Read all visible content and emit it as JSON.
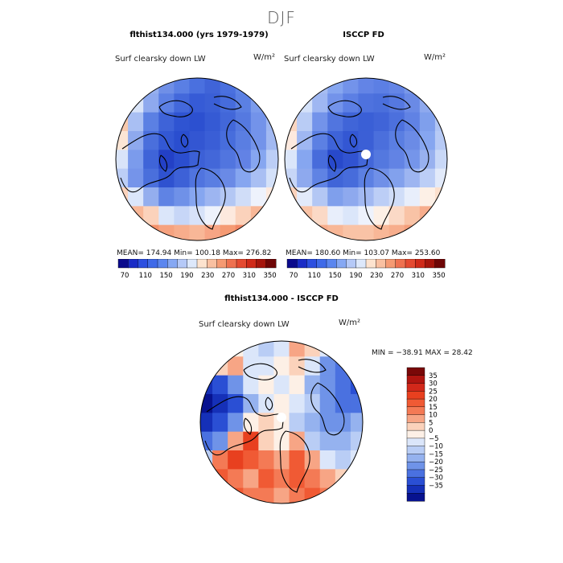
{
  "page": {
    "season": "DJF"
  },
  "panels": [
    {
      "title": "flthist134.000 (yrs 1979-1979)",
      "variable": "Surf clearsky down LW",
      "units": "W/m²",
      "stats": "MEAN= 174.94   Min= 100.18   Max= 276.82"
    },
    {
      "title": "ISCCP FD",
      "variable": "Surf clearsky down LW",
      "units": "W/m²",
      "stats": "MEAN= 180.60   Min= 103.07   Max= 253.60"
    },
    {
      "title": "flthist134.000 - ISCCP FD",
      "variable": "Surf clearsky down LW",
      "units": "W/m²",
      "stats": "MIN = −38.91  MAX =  28.42"
    }
  ],
  "colorbar_top": {
    "labels": [
      "70",
      "110",
      "150",
      "190",
      "230",
      "270",
      "310",
      "350"
    ],
    "colors": [
      "#0a0a8c",
      "#1a2cc6",
      "#2c4fe0",
      "#3f6ae8",
      "#5b86ef",
      "#86a8f3",
      "#b5c9f7",
      "#dde8fb",
      "#fde3cf",
      "#f9c0a1",
      "#f59a73",
      "#ee7150",
      "#e44a31",
      "#cf2a19",
      "#a5150c",
      "#6e0606"
    ]
  },
  "colorbar_diff": {
    "labels": [
      "35",
      "30",
      "25",
      "20",
      "15",
      "10",
      "5",
      "0",
      "−5",
      "−10",
      "−15",
      "−20",
      "−25",
      "−30",
      "−35"
    ],
    "colors": [
      "#7a0808",
      "#b01510",
      "#d2281a",
      "#e8401f",
      "#f05a34",
      "#f47a55",
      "#f7a585",
      "#fbd2bb",
      "#fdf0e6",
      "#dbe6fa",
      "#b9cdf5",
      "#95b2ef",
      "#6f93e8",
      "#4a71e0",
      "#2a4fd4",
      "#1530b8",
      "#07128f"
    ]
  },
  "maps": {
    "panel1": {
      "cells": [
        [
          "#d9e4f9",
          "#b9ccf5",
          "#96b0ef",
          "#6f8fe7",
          "#5a7fe4",
          "#4a70df",
          "#4064d8",
          "#4a70df",
          "#5d84e6",
          "#86a6f0",
          "#b7caf5"
        ],
        [
          "#f4b391",
          "#d9e4f9",
          "#8ea9ee",
          "#5c80e4",
          "#4368db",
          "#365bd6",
          "#3a5fd6",
          "#466cdc",
          "#5b80e3",
          "#7c9cec",
          "#a9bff3"
        ],
        [
          "#f7c9ad",
          "#a9bff3",
          "#5b80e3",
          "#3e63d8",
          "#2f54d2",
          "#2c50d0",
          "#355ad4",
          "#4267d9",
          "#5579e0",
          "#7393ea",
          "#9fb7f2"
        ],
        [
          "#fce5d4",
          "#8ea9ee",
          "#4a6fdc",
          "#3358d4",
          "#2a4ecf",
          "#3356d2",
          "#3a5ed6",
          "#476ddc",
          "#5a7ee2",
          "#7393ea",
          "#a2b9f2"
        ],
        [
          "#d9e4f9",
          "#7b9bec",
          "#3f64d8",
          "#2340c6",
          "#2b4ecf",
          "#3c60d6",
          "#4367d9",
          "#5175df",
          "#6282e5",
          "#86a6f0",
          "#bccef6"
        ],
        [
          "#bccef6",
          "#7594ea",
          "#4a6fdc",
          "#2f52d0",
          "#3d61d7",
          "#5074df",
          "#5a7ee2",
          "#6a8ae6",
          "#86a6f0",
          "#a9bff3",
          "#d4e1f9"
        ],
        [
          "#fbd2bb",
          "#dbe6fa",
          "#94aeee",
          "#5f83e4",
          "#6f91e8",
          "#86a6f0",
          "#9db5f1",
          "#b3c7f4",
          "#d0ddf8",
          "#eef2fc",
          "#fde9de"
        ],
        [
          "#f59a73",
          "#f8b797",
          "#fbd2bb",
          "#dbe6fa",
          "#c7d6f7",
          "#d7e2f9",
          "#eef2fc",
          "#fde9de",
          "#fbd2bb",
          "#f8b797",
          "#f3946c"
        ],
        [
          "#ee7150",
          "#f07c5a",
          "#f4916a",
          "#f6a27f",
          "#f7ad8c",
          "#f8b797",
          "#f7a585",
          "#f59a73",
          "#f18563",
          "#ee7150",
          "#e9603f"
        ]
      ]
    },
    "panel2": {
      "cells": [
        [
          "#d9e4f9",
          "#c2d3f6",
          "#a7bdf2",
          "#86a6f0",
          "#7393ea",
          "#6384e6",
          "#5c7fe4",
          "#6485e6",
          "#7898ea",
          "#9fb7f2",
          "#cbd8f8"
        ],
        [
          "#fde3cf",
          "#d4e1f9",
          "#9fb7f2",
          "#7393ea",
          "#5c7fe4",
          "#4e72de",
          "#4a6fdc",
          "#5578e0",
          "#6a8ae6",
          "#8ea9ee",
          "#bccef6"
        ],
        [
          "#f9d6c1",
          "#b9ccf5",
          "#7393ea",
          "#5175df",
          "#4065d8",
          "#3a5fd6",
          "#4064d8",
          "#4c70dd",
          "#6082e4",
          "#7f9fec",
          "#b0c5f4"
        ],
        [
          "#fde9de",
          "#9fb7f2",
          "#5c80e3",
          "#3e63d8",
          "#3357d3",
          "#3b5fd6",
          "#4b6fdc",
          "#5a7ee2",
          "#6b8be6",
          "#86a6f0",
          "#b7caf5"
        ],
        [
          "#dbe6fa",
          "#86a6f0",
          "#476cdb",
          "#2849cb",
          "#3153d1",
          "#4367d9",
          "#5478df",
          "#6283e4",
          "#7595ea",
          "#98b1ef",
          "#c9d8f7"
        ],
        [
          "#c7d6f7",
          "#8ea9ee",
          "#5f83e4",
          "#4065d8",
          "#476cdb",
          "#5c80e3",
          "#7090e8",
          "#82a1ed",
          "#9db5f1",
          "#bccef6",
          "#e2eafa"
        ],
        [
          "#fbd2bb",
          "#e2eafa",
          "#b3c7f4",
          "#7f9fec",
          "#8ea9ee",
          "#a2b9f2",
          "#bccef6",
          "#d0ddf8",
          "#e8eefb",
          "#fdf0e6",
          "#fce0cd"
        ],
        [
          "#f7ad8c",
          "#f9c3a6",
          "#fbd9c6",
          "#e8eefb",
          "#dbe6fa",
          "#eef2fc",
          "#fdf0e6",
          "#fbd9c6",
          "#f9c3a6",
          "#f7ad8c",
          "#f6a27f"
        ],
        [
          "#f3946c",
          "#f59f7b",
          "#f7ad8c",
          "#f8b797",
          "#f9c3a6",
          "#f9c3a6",
          "#f8b797",
          "#f7ad8c",
          "#f59f7b",
          "#f3946c",
          "#ef8261"
        ]
      ]
    },
    "diff": {
      "cells": [
        [
          "#fbd2bb",
          "#f7a585",
          "#fdf0e6",
          "#dbe6fa",
          "#b9cdf5",
          "#dbe6fa",
          "#f7a585",
          "#fbd2bb",
          "#dbe6fa",
          "#6f93e8",
          "#4a71e0"
        ],
        [
          "#6f93e8",
          "#fbd2bb",
          "#f7a585",
          "#dbe6fa",
          "#dbe6fa",
          "#fdf0e6",
          "#fbd2bb",
          "#dbe6fa",
          "#6f93e8",
          "#4a71e0",
          "#2a4fd4"
        ],
        [
          "#1530b8",
          "#2a4fd4",
          "#6f93e8",
          "#dbe6fa",
          "#fdf0e6",
          "#dbe6fa",
          "#fdf0e6",
          "#95b2ef",
          "#6f93e8",
          "#4a71e0",
          "#2a4fd4"
        ],
        [
          "#07128f",
          "#1530b8",
          "#2a4fd4",
          "#95b2ef",
          "#dbe6fa",
          "#fdf0e6",
          "#dbe6fa",
          "#b9cdf5",
          "#6f93e8",
          "#4a71e0",
          "#4a71e0"
        ],
        [
          "#1530b8",
          "#2a4fd4",
          "#6f93e8",
          "#fdf0e6",
          "#fbd2bb",
          "#fdf0e6",
          "#b9cdf5",
          "#95b2ef",
          "#6f93e8",
          "#6f93e8",
          "#95b2ef"
        ],
        [
          "#4a71e0",
          "#6f93e8",
          "#f7a585",
          "#e8401f",
          "#fbd2bb",
          "#fdf0e6",
          "#f7a585",
          "#b9cdf5",
          "#95b2ef",
          "#95b2ef",
          "#b9cdf5"
        ],
        [
          "#b9cdf5",
          "#f47a55",
          "#e8401f",
          "#f05a34",
          "#f47a55",
          "#f7a585",
          "#f05a34",
          "#f7a585",
          "#dbe6fa",
          "#b9cdf5",
          "#dbe6fa"
        ],
        [
          "#fbd2bb",
          "#f05a34",
          "#f47a55",
          "#f7a585",
          "#f05a34",
          "#f47a55",
          "#f05a34",
          "#f47a55",
          "#f7a585",
          "#fbd2bb",
          "#fdf0e6"
        ],
        [
          "#f7a585",
          "#f47a55",
          "#f05a34",
          "#f47a55",
          "#f47a55",
          "#f7a585",
          "#f47a55",
          "#f05a34",
          "#f47a55",
          "#f7a585",
          "#fbd2bb"
        ]
      ]
    }
  }
}
